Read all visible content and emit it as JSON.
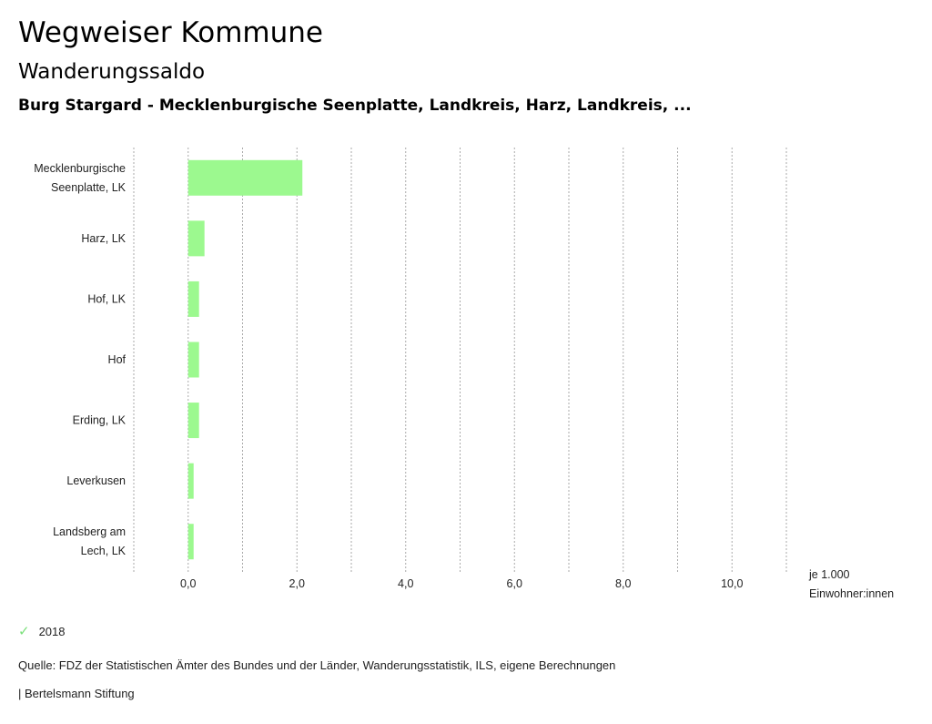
{
  "header": {
    "title": "Wegweiser Kommune",
    "subtitle": "Wanderungssaldo",
    "description": "Burg Stargard - Mecklenburgische Seenplatte, Landkreis, Harz, Landkreis, ..."
  },
  "chart_data": {
    "type": "bar",
    "orientation": "horizontal",
    "categories": [
      [
        "Mecklenburgische",
        "Seenplatte, LK"
      ],
      [
        "Harz, LK"
      ],
      [
        "Hof, LK"
      ],
      [
        "Hof"
      ],
      [
        "Erding, LK"
      ],
      [
        "Leverkusen"
      ],
      [
        "Landsberg am",
        "Lech, LK"
      ]
    ],
    "series": [
      {
        "name": "2018",
        "color": "#9cf98f",
        "values": [
          2.1,
          0.3,
          0.2,
          0.2,
          0.2,
          0.1,
          0.1
        ]
      }
    ],
    "xlim": [
      -1.0,
      11.0
    ],
    "ticks": [
      0,
      2,
      4,
      6,
      8,
      10
    ],
    "tick_labels": [
      "0,0",
      "2,0",
      "4,0",
      "6,0",
      "8,0",
      "10,0"
    ],
    "gridlines": [
      -1,
      0,
      1,
      2,
      3,
      4,
      5,
      6,
      7,
      8,
      9,
      10,
      11
    ],
    "xlabel": [
      "je 1.000",
      "Einwohner:innen"
    ]
  },
  "legend": {
    "label": "2018",
    "check_color": "#7be07b"
  },
  "footer": {
    "source": "Quelle: FDZ der Statistischen Ämter des Bundes und der Länder, Wanderungsstatistik, ILS, eigene Berechnungen",
    "credit": "| Bertelsmann Stiftung"
  }
}
